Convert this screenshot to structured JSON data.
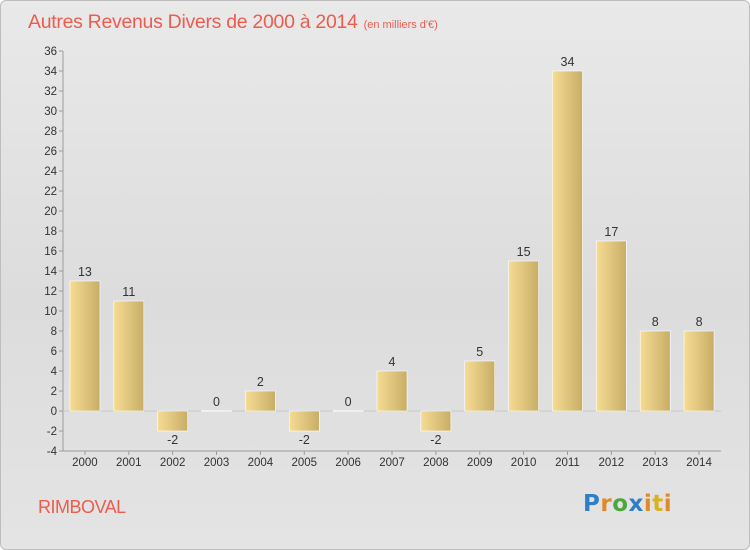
{
  "header": {
    "title": "Autres Revenus Divers de 2000 à 2014",
    "unit": "(en milliers d'€)"
  },
  "footer": {
    "commune": "RIMBOVAL",
    "logo_text": "Proxiti"
  },
  "colors": {
    "title": "#ea5d4f",
    "bar_light": "#f6dc93",
    "bar_dark": "#c8ad67",
    "axis": "#9c9c9c",
    "label": "#333333"
  },
  "chart_data": {
    "type": "bar",
    "title": "Autres Revenus Divers de 2000 à 2014",
    "subtitle": "(en milliers d'€)",
    "xlabel": "",
    "ylabel": "",
    "categories": [
      "2000",
      "2001",
      "2002",
      "2003",
      "2004",
      "2005",
      "2006",
      "2007",
      "2008",
      "2009",
      "2010",
      "2011",
      "2012",
      "2013",
      "2014"
    ],
    "values": [
      13,
      11,
      -2,
      0,
      2,
      -2,
      0,
      4,
      -2,
      5,
      15,
      34,
      17,
      8,
      8
    ],
    "ylim": [
      -4,
      36
    ],
    "yticks": [
      -4,
      -2,
      0,
      2,
      4,
      6,
      8,
      10,
      12,
      14,
      16,
      18,
      20,
      22,
      24,
      26,
      28,
      30,
      32,
      34,
      36
    ],
    "grid": false,
    "legend": "none"
  }
}
